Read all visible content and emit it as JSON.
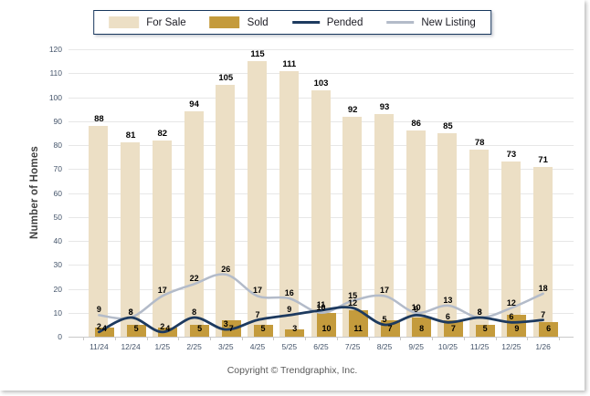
{
  "legend": {
    "items": [
      {
        "label": "For Sale",
        "swatch": "bar",
        "color": "#ECDFC5"
      },
      {
        "label": "Sold",
        "swatch": "bar",
        "color": "#C49B3C"
      },
      {
        "label": "Pended",
        "swatch": "line",
        "color": "#1D3A5F"
      },
      {
        "label": "New Listing",
        "swatch": "line",
        "color": "#B3BBC9"
      }
    ]
  },
  "footer": {
    "text": "Copyright © Trendgraphix, Inc."
  },
  "chart_data": {
    "type": "bar",
    "title": "",
    "xlabel": "",
    "ylabel": "Number of Homes",
    "ylim": [
      0,
      120
    ],
    "ystep": 10,
    "grid": true,
    "legend_position": "top",
    "categories": [
      "11/24",
      "12/24",
      "1/25",
      "2/25",
      "3/25",
      "4/25",
      "5/25",
      "6/25",
      "7/25",
      "8/25",
      "9/25",
      "10/25",
      "11/25",
      "12/25",
      "1/26"
    ],
    "series": [
      {
        "name": "For Sale",
        "type": "bar",
        "color": "#ECDFC5",
        "values": [
          88,
          81,
          82,
          94,
          105,
          115,
          111,
          103,
          92,
          93,
          86,
          85,
          78,
          73,
          71
        ]
      },
      {
        "name": "Sold",
        "type": "bar",
        "color": "#C49B3C",
        "values": [
          4,
          5,
          4,
          5,
          7,
          5,
          3,
          10,
          11,
          7,
          8,
          7,
          5,
          9,
          6
        ]
      },
      {
        "name": "Pended",
        "type": "line",
        "color": "#1D3A5F",
        "values": [
          2,
          8,
          2,
          8,
          3,
          7,
          9,
          11,
          12,
          5,
          9,
          6,
          8,
          6,
          7
        ]
      },
      {
        "name": "New Listing",
        "type": "line",
        "color": "#B3BBC9",
        "values": [
          9,
          8,
          17,
          22,
          26,
          17,
          16,
          10,
          15,
          17,
          10,
          13,
          8,
          12,
          18
        ]
      }
    ]
  }
}
